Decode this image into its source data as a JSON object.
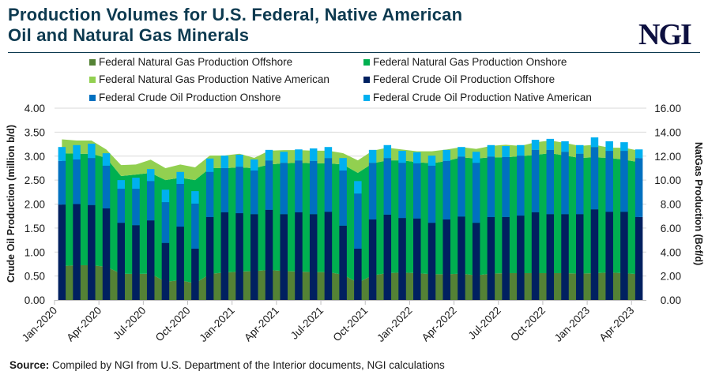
{
  "title_line1": "Production Volumes for U.S. Federal, Native American",
  "title_line2": "Oil and Natural Gas Minerals",
  "logo": "NGI",
  "source_label": "Source:",
  "source_text": "Compiled by NGI from U.S. Department of the Interior documents, NGI calculations",
  "chart_data": {
    "type": "bar",
    "subtype": "stacked bars (oil, left axis) over stacked areas (gas, right axis)",
    "ylabel_left": "Crude Oil  Production (million b/d)",
    "ylabel_right": "NatGas Production (Bcf/d)",
    "ylim_left": [
      0,
      4
    ],
    "ylim_right": [
      0,
      16
    ],
    "yticks_left": [
      "0.00",
      "0.50",
      "1.00",
      "1.50",
      "2.00",
      "2.50",
      "3.00",
      "3.50",
      "4.00"
    ],
    "yticks_right": [
      "0.00",
      "2.00",
      "4.00",
      "6.00",
      "8.00",
      "10.00",
      "12.00",
      "14.00",
      "16.00"
    ],
    "grid": true,
    "legend_position": "top",
    "categories": [
      "Jan-2020",
      "Feb-2020",
      "Mar-2020",
      "Apr-2020",
      "May-2020",
      "Jun-2020",
      "Jul-2020",
      "Aug-2020",
      "Sep-2020",
      "Oct-2020",
      "Nov-2020",
      "Dec-2020",
      "Jan-2021",
      "Feb-2021",
      "Mar-2021",
      "Apr-2021",
      "May-2021",
      "Jun-2021",
      "Jul-2021",
      "Aug-2021",
      "Sep-2021",
      "Oct-2021",
      "Nov-2021",
      "Dec-2021",
      "Jan-2022",
      "Feb-2022",
      "Mar-2022",
      "Apr-2022",
      "May-2022",
      "Jun-2022",
      "Jul-2022",
      "Aug-2022",
      "Sep-2022",
      "Oct-2022",
      "Nov-2022",
      "Dec-2022",
      "Jan-2023",
      "Feb-2023",
      "Mar-2023",
      "Apr-2023"
    ],
    "xtick_labels": [
      "Jan-2020",
      "Apr-2020",
      "Jul-2020",
      "Oct-2020",
      "Jan-2021",
      "Apr-2021",
      "Jul-2021",
      "Oct-2021",
      "Jan-2022",
      "Apr-2022",
      "Jul-2022",
      "Oct-2022",
      "Jan-2023",
      "Apr-2023"
    ],
    "series": [
      {
        "name": "Federal Natural Gas Production Offshore",
        "kind": "area",
        "axis": "right",
        "color": "#548235",
        "values": [
          2.83,
          2.9,
          2.9,
          2.77,
          2.19,
          2.17,
          2.2,
          1.52,
          1.65,
          1.39,
          2.17,
          2.3,
          2.37,
          2.41,
          2.5,
          2.41,
          2.37,
          2.33,
          2.33,
          2.11,
          1.45,
          2.06,
          2.24,
          2.3,
          2.24,
          2.15,
          2.15,
          2.2,
          2.06,
          2.2,
          2.24,
          2.24,
          2.24,
          2.24,
          2.24,
          2.2,
          2.24,
          2.3,
          2.24,
          2.15
        ]
      },
      {
        "name": "Federal Natural Gas Production Onshore",
        "kind": "area",
        "axis": "right",
        "color": "#00b050",
        "values": [
          9.42,
          9.3,
          9.3,
          9.08,
          8.15,
          8.29,
          8.4,
          8.48,
          8.55,
          8.61,
          8.83,
          8.7,
          8.69,
          8.59,
          8.8,
          8.99,
          9.08,
          9.07,
          9.07,
          9.19,
          9.15,
          9.34,
          9.41,
          9.35,
          9.26,
          9.25,
          9.45,
          9.7,
          9.74,
          9.7,
          9.66,
          9.76,
          9.86,
          10.01,
          9.81,
          9.65,
          9.66,
          9.55,
          9.46,
          9.35
        ]
      },
      {
        "name": "Federal Natural Gas Production Native American",
        "kind": "area",
        "axis": "right",
        "color": "#92d050",
        "values": [
          1.15,
          1.1,
          1.1,
          0.7,
          0.91,
          0.84,
          1.1,
          1.0,
          1.1,
          1.06,
          1.05,
          1.05,
          1.14,
          0.85,
          1.15,
          1.1,
          1.05,
          1.05,
          1.05,
          0.95,
          1.05,
          1.05,
          1.05,
          0.9,
          0.9,
          1.0,
          0.95,
          0.85,
          0.8,
          0.95,
          1.05,
          0.85,
          1.05,
          1.05,
          1.05,
          1.0,
          1.05,
          0.85,
          1.0,
          0.95
        ]
      },
      {
        "name": "Federal Crude Oil Production Offshore",
        "kind": "bar",
        "axis": "left",
        "color": "#002060",
        "values": [
          1.99,
          2.0,
          1.98,
          1.91,
          1.61,
          1.56,
          1.66,
          1.19,
          1.53,
          1.07,
          1.73,
          1.83,
          1.81,
          1.79,
          1.88,
          1.79,
          1.83,
          1.79,
          1.84,
          1.55,
          1.07,
          1.68,
          1.78,
          1.71,
          1.7,
          1.61,
          1.68,
          1.74,
          1.61,
          1.73,
          1.73,
          1.76,
          1.83,
          1.79,
          1.79,
          1.79,
          1.89,
          1.84,
          1.84,
          1.73
        ]
      },
      {
        "name": "Federal Crude Oil Production Onshore",
        "kind": "bar",
        "axis": "left",
        "color": "#0070c0",
        "values": [
          0.91,
          0.93,
          0.98,
          0.89,
          0.71,
          0.76,
          0.82,
          0.85,
          0.89,
          0.94,
          0.94,
          0.92,
          0.97,
          0.91,
          1.03,
          1.07,
          1.08,
          1.11,
          1.12,
          1.15,
          1.15,
          1.18,
          1.18,
          1.15,
          1.15,
          1.19,
          1.22,
          1.25,
          1.25,
          1.26,
          1.25,
          1.25,
          1.3,
          1.34,
          1.3,
          1.26,
          1.3,
          1.27,
          1.27,
          1.23
        ]
      },
      {
        "name": "Federal Crude Oil Production Native American",
        "kind": "bar",
        "axis": "left",
        "color": "#00b0f0",
        "values": [
          0.29,
          0.3,
          0.3,
          0.26,
          0.18,
          0.23,
          0.25,
          0.26,
          0.25,
          0.26,
          0.28,
          0.26,
          0.25,
          0.23,
          0.22,
          0.23,
          0.23,
          0.26,
          0.23,
          0.26,
          0.26,
          0.27,
          0.27,
          0.25,
          0.23,
          0.21,
          0.23,
          0.2,
          0.23,
          0.24,
          0.23,
          0.22,
          0.21,
          0.23,
          0.22,
          0.18,
          0.2,
          0.2,
          0.18,
          0.18
        ]
      }
    ]
  }
}
